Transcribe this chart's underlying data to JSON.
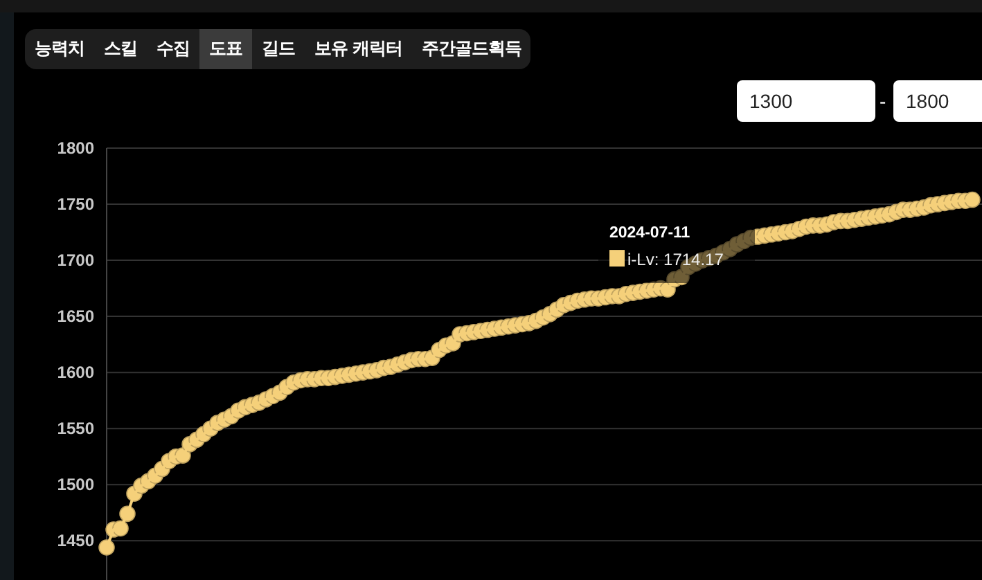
{
  "chart_data": {
    "type": "line",
    "categories": [
      null,
      null,
      null,
      null,
      null,
      null,
      null,
      null,
      null,
      null,
      null,
      null,
      null,
      null,
      null,
      null,
      null,
      null,
      null,
      null,
      null,
      null,
      null,
      null,
      null,
      null,
      null,
      null,
      null,
      null,
      null,
      null,
      null,
      null,
      null,
      null,
      null,
      null,
      null,
      null,
      null,
      null,
      null,
      null,
      null,
      null,
      null,
      null,
      null,
      null,
      null,
      null,
      null,
      null,
      null,
      null,
      null,
      null,
      null,
      null,
      null,
      null,
      null,
      null,
      null,
      null,
      null,
      null,
      null,
      null,
      null,
      null,
      null,
      null,
      null,
      null,
      null,
      null,
      null,
      null,
      null,
      null,
      null,
      null,
      null,
      null,
      null,
      null,
      null,
      null,
      null,
      null,
      null,
      null,
      null,
      null,
      null,
      null,
      null,
      null,
      null,
      null,
      null,
      null,
      null,
      null,
      null,
      null,
      null,
      null,
      null,
      null,
      null,
      null,
      null,
      null,
      null,
      null,
      null,
      null,
      null,
      null,
      null,
      null,
      null,
      null
    ],
    "series": [
      {
        "name": "i-Lv",
        "color": "#f5d07a",
        "values": [
          1444,
          1460,
          1461,
          1474,
          1492,
          1499,
          1503,
          1508,
          1514,
          1521,
          1525,
          1526,
          1536,
          1540,
          1545,
          1550,
          1555,
          1558,
          1561,
          1566,
          1569,
          1571,
          1573,
          1576,
          1579,
          1582,
          1587,
          1591,
          1593,
          1594,
          1594,
          1595,
          1595,
          1596,
          1597,
          1598,
          1599,
          1600,
          1601,
          1602,
          1604,
          1605,
          1607,
          1609,
          1611,
          1612,
          1612,
          1613,
          1620,
          1624,
          1626,
          1634,
          1635,
          1636,
          1637,
          1638,
          1639,
          1640,
          1641,
          1642,
          1643,
          1644,
          1646,
          1649,
          1652,
          1656,
          1660,
          1662,
          1664,
          1665,
          1666,
          1666,
          1667,
          1668,
          1668,
          1670,
          1671,
          1672,
          1673,
          1674,
          1675,
          1674,
          1683,
          1685,
          1694,
          1697,
          1700,
          1702,
          1704,
          1707,
          1710,
          1714.17,
          1717,
          1720,
          1721,
          1722,
          1723,
          1724,
          1725,
          1726,
          1728,
          1730,
          1731,
          1731,
          1732,
          1734,
          1735,
          1735,
          1736,
          1737,
          1738,
          1739,
          1740,
          1741,
          1743,
          1745,
          1745,
          1746,
          1747,
          1749,
          1750,
          1751,
          1752,
          1753,
          1753,
          1754
        ],
        "value_labels": [
          null,
          null,
          null,
          null,
          null,
          null,
          null,
          null,
          null,
          null,
          null,
          null,
          null,
          null,
          null,
          null,
          null,
          null,
          null,
          null,
          null,
          null,
          null,
          null,
          null,
          null,
          null,
          null,
          null,
          null,
          null,
          null,
          null,
          null,
          null,
          null,
          null,
          null,
          null,
          null,
          null,
          null,
          null,
          null,
          null,
          null,
          null,
          null,
          null,
          null,
          null,
          null,
          null,
          null,
          null,
          null,
          null,
          null,
          null,
          null,
          null,
          null,
          null,
          null,
          null,
          null,
          null,
          null,
          null,
          null,
          null,
          null,
          null,
          null,
          null,
          null,
          null,
          null,
          null,
          null,
          null,
          null,
          null,
          null,
          null,
          null,
          null,
          null,
          null,
          null,
          null,
          "1714.17",
          null,
          null,
          null,
          null,
          null,
          null,
          null,
          null,
          null,
          null,
          null,
          null,
          null,
          null,
          null,
          null,
          null,
          null,
          null,
          null,
          null,
          null,
          null,
          null,
          null,
          null,
          null,
          null,
          null,
          null,
          null,
          null,
          null,
          null
        ]
      }
    ],
    "ylim": [
      1415,
      1800
    ],
    "yticks": [
      1450,
      1500,
      1550,
      1600,
      1650,
      1700,
      1750,
      1800
    ],
    "grid": "y",
    "tick_labels": "y",
    "marker": "circle",
    "annotations": [
      "2024-07-11",
      ":",
      "능력치",
      "스킬",
      "수집",
      "도표",
      "길드",
      "보유 캐릭터",
      "주간골드획득",
      "1300",
      "-",
      "1800"
    ]
  }
}
